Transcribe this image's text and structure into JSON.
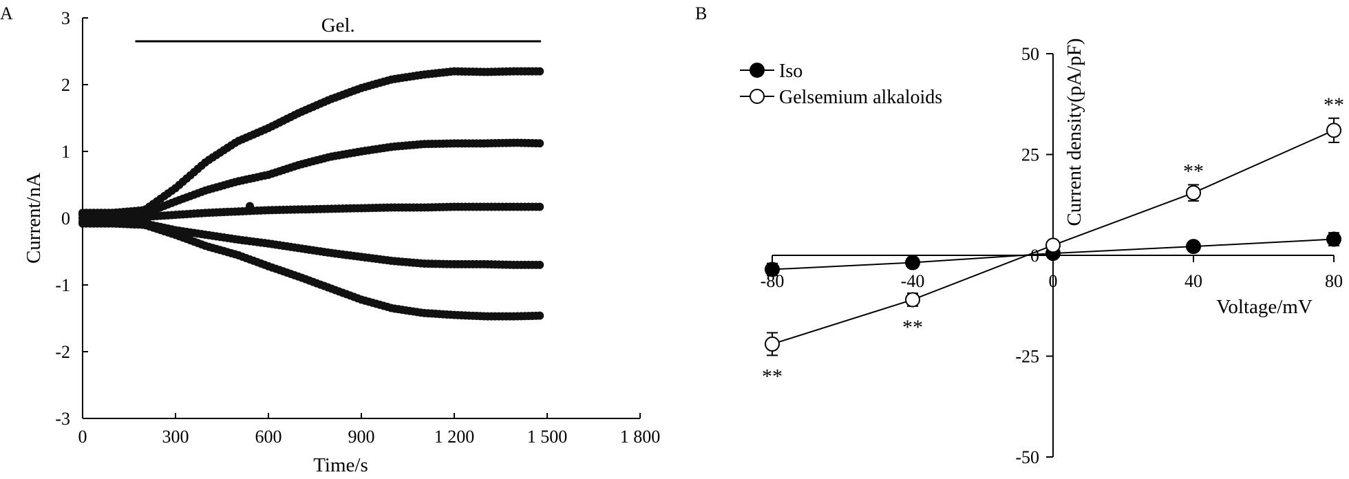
{
  "chart_data": [
    {
      "panel": "A",
      "type": "scatter",
      "xlabel": "Time/s",
      "ylabel": "Current/nA",
      "xlim": [
        0,
        1800
      ],
      "ylim": [
        -3,
        3
      ],
      "xticks": [
        "0",
        "300",
        "600",
        "900",
        "1 200",
        "1 500",
        "1 800"
      ],
      "xtick_values": [
        0,
        300,
        600,
        900,
        1200,
        1500,
        1800
      ],
      "yticks": [
        "-3",
        "-2",
        "-1",
        "0",
        "1",
        "2",
        "3"
      ],
      "ytick_values": [
        -3,
        -2,
        -1,
        0,
        1,
        2,
        3
      ],
      "annotation": {
        "text": "Gel.",
        "x_start": 170,
        "x_end": 1480,
        "y": 2.65
      },
      "traces": [
        {
          "x": [
            0,
            100,
            200,
            300,
            400,
            500,
            600,
            700,
            800,
            900,
            1000,
            1100,
            1200,
            1300,
            1400,
            1480
          ],
          "y": [
            0.08,
            0.08,
            0.12,
            0.45,
            0.85,
            1.15,
            1.35,
            1.58,
            1.78,
            1.95,
            2.08,
            2.15,
            2.2,
            2.19,
            2.2,
            2.2
          ]
        },
        {
          "x": [
            0,
            100,
            200,
            300,
            400,
            500,
            600,
            700,
            800,
            900,
            1000,
            1100,
            1200,
            1300,
            1400,
            1480
          ],
          "y": [
            0.05,
            0.05,
            0.07,
            0.25,
            0.42,
            0.55,
            0.65,
            0.8,
            0.92,
            1.0,
            1.07,
            1.11,
            1.12,
            1.12,
            1.13,
            1.12
          ]
        },
        {
          "x": [
            0,
            100,
            200,
            300,
            400,
            500,
            600,
            700,
            800,
            900,
            1000,
            1100,
            1200,
            1300,
            1400,
            1480
          ],
          "y": [
            0.0,
            0.0,
            0.02,
            0.05,
            0.08,
            0.1,
            0.12,
            0.13,
            0.14,
            0.15,
            0.16,
            0.16,
            0.17,
            0.17,
            0.17,
            0.17
          ]
        },
        {
          "x": [
            0,
            100,
            200,
            300,
            400,
            500,
            600,
            700,
            800,
            900,
            1000,
            1100,
            1200,
            1300,
            1400,
            1480
          ],
          "y": [
            -0.05,
            -0.05,
            -0.08,
            -0.18,
            -0.25,
            -0.32,
            -0.38,
            -0.45,
            -0.52,
            -0.58,
            -0.64,
            -0.68,
            -0.69,
            -0.69,
            -0.7,
            -0.7
          ]
        },
        {
          "x": [
            0,
            100,
            200,
            300,
            400,
            500,
            600,
            700,
            800,
            900,
            1000,
            1100,
            1200,
            1300,
            1400,
            1480
          ],
          "y": [
            -0.08,
            -0.08,
            -0.1,
            -0.25,
            -0.42,
            -0.55,
            -0.72,
            -0.88,
            -1.05,
            -1.22,
            -1.35,
            -1.42,
            -1.45,
            -1.47,
            -1.47,
            -1.46
          ]
        }
      ],
      "outlier": {
        "x": 540,
        "y": 0.18
      }
    },
    {
      "panel": "B",
      "type": "line",
      "xlabel": "Voltage/mV",
      "ylabel": "Current density(pA/pF)",
      "xlim": [
        -80,
        80
      ],
      "ylim": [
        -50,
        50
      ],
      "xticks": [
        "-80",
        "-40",
        "0",
        "40",
        "80"
      ],
      "xtick_values": [
        -80,
        -40,
        0,
        40,
        80
      ],
      "yticks": [
        "-50",
        "-25",
        "0",
        "25",
        "50"
      ],
      "ytick_values": [
        -50,
        -25,
        0,
        25,
        50
      ],
      "legend_position": "top-left",
      "x": [
        -80,
        -40,
        0,
        40,
        80
      ],
      "series": [
        {
          "name": "Iso",
          "marker": "filled-circle",
          "values": [
            -3.5,
            -1.8,
            0.5,
            2.2,
            4.0
          ],
          "errors": [
            1.5,
            1.2,
            0.5,
            1.0,
            1.6
          ],
          "significance": [
            "",
            "",
            "",
            "",
            ""
          ]
        },
        {
          "name": "Gelsemium alkaloids",
          "marker": "open-circle",
          "values": [
            -22,
            -11,
            2.5,
            15.5,
            31
          ],
          "errors": [
            2.8,
            1.6,
            0.8,
            2.0,
            3.0
          ],
          "significance": [
            "**",
            "**",
            "",
            "**",
            "**"
          ]
        }
      ]
    }
  ],
  "panels": {
    "a_letter": "A",
    "b_letter": "B"
  }
}
